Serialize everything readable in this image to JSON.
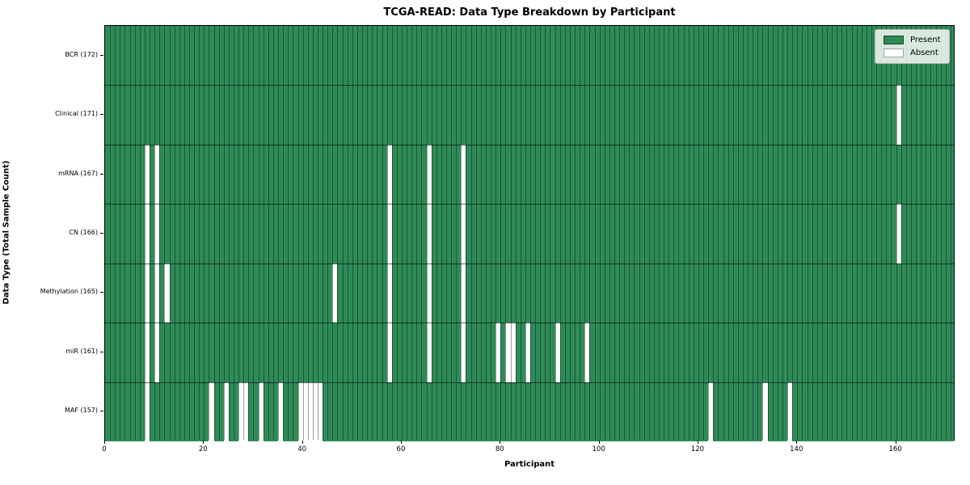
{
  "title": "TCGA-READ: Data Type Breakdown by Participant",
  "x_axis": {
    "label": "Participant"
  },
  "y_axis": {
    "label": "Data Type (Total Sample Count)"
  },
  "legend": {
    "present_label": "Present",
    "absent_label": "Absent"
  },
  "colors": {
    "present": "#2e8b57",
    "absent": "#ffffff"
  },
  "chart_data": {
    "type": "heatmap",
    "title": "TCGA-READ: Data Type Breakdown by Participant",
    "xlabel": "Participant",
    "ylabel": "Data Type (Total Sample Count)",
    "legend_entries": [
      "Present",
      "Absent"
    ],
    "legend_position": "upper right",
    "grid": true,
    "n_participants": 172,
    "x_ticks": [
      0,
      20,
      40,
      60,
      80,
      100,
      120,
      140,
      160
    ],
    "xlim": [
      0,
      172
    ],
    "rows": [
      {
        "label": "BCR (172)",
        "data_type": "BCR",
        "total_sample_count": 172,
        "absent_participants": []
      },
      {
        "label": "Clinical (171)",
        "data_type": "Clinical",
        "total_sample_count": 171,
        "absent_participants": [
          160
        ]
      },
      {
        "label": "mRNA (167)",
        "data_type": "mRNA",
        "total_sample_count": 167,
        "absent_participants": [
          8,
          10,
          57,
          65,
          72
        ]
      },
      {
        "label": "CN (166)",
        "data_type": "CN",
        "total_sample_count": 166,
        "absent_participants": [
          8,
          10,
          57,
          65,
          72,
          160
        ]
      },
      {
        "label": "Methylation (165)",
        "data_type": "Methylation",
        "total_sample_count": 165,
        "absent_participants": [
          8,
          10,
          12,
          46,
          57,
          65,
          72
        ]
      },
      {
        "label": "miR (161)",
        "data_type": "miR",
        "total_sample_count": 161,
        "absent_participants": [
          8,
          10,
          57,
          65,
          72,
          79,
          81,
          82,
          85,
          91,
          97
        ]
      },
      {
        "label": "MAF (157)",
        "data_type": "MAF",
        "total_sample_count": 157,
        "absent_participants": [
          8,
          21,
          24,
          27,
          28,
          31,
          35,
          39,
          40,
          41,
          42,
          43,
          122,
          133,
          138
        ]
      }
    ]
  }
}
